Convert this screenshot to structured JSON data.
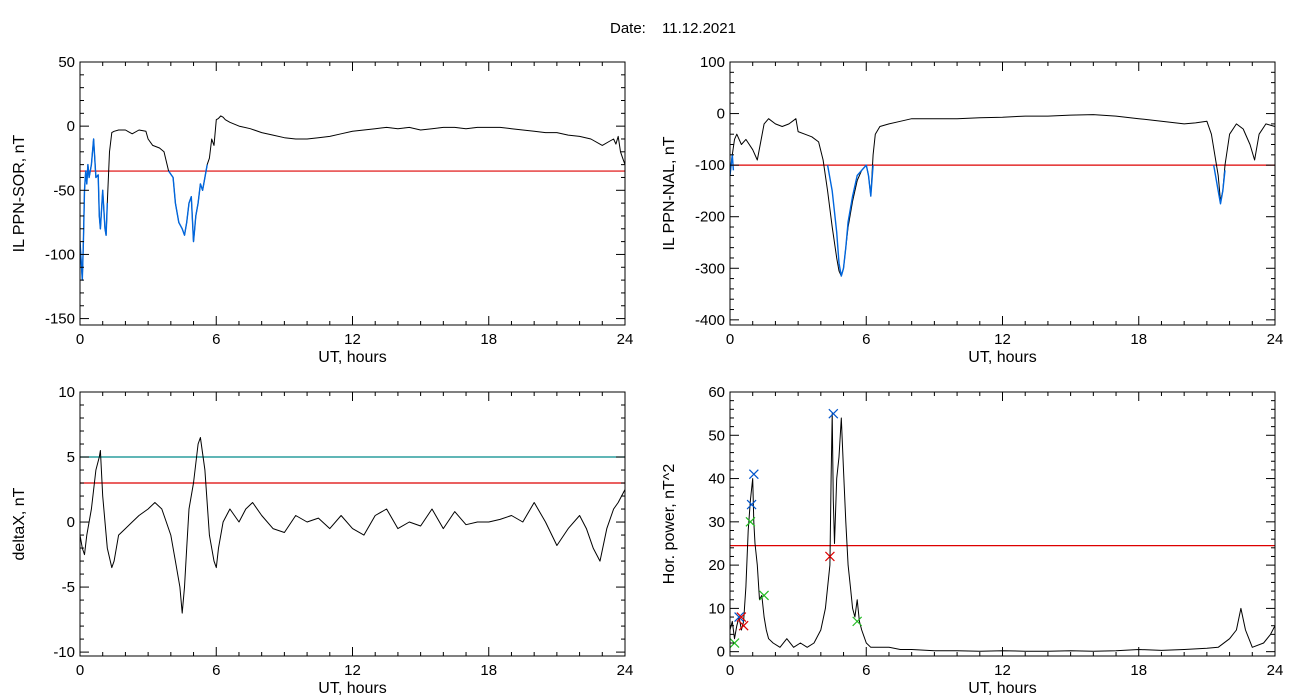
{
  "page": {
    "date_label": "Date:",
    "date_value": "11.12.2021"
  },
  "chart_data": [
    {
      "id": "sor",
      "type": "line",
      "xlabel": "UT, hours",
      "ylabel": "IL PPN-SOR, nT",
      "xlim": [
        0,
        24
      ],
      "ylim": [
        -155,
        50
      ],
      "xticks": [
        0,
        6,
        12,
        18,
        24
      ],
      "yticks": [
        -150,
        -100,
        -50,
        0,
        50
      ],
      "threshold": {
        "value": -35,
        "color": "#dd0000"
      },
      "series": [
        {
          "color": "#000000",
          "x": [
            0.0,
            0.1,
            0.15,
            0.2,
            0.25,
            0.3,
            0.35,
            0.4,
            0.5,
            0.55,
            0.6,
            0.7,
            0.8,
            0.85,
            0.9,
            1.0,
            1.1,
            1.15,
            1.2,
            1.3,
            1.4,
            1.5,
            1.7,
            2.0,
            2.3,
            2.6,
            2.9,
            3.0,
            3.2,
            3.5,
            3.7,
            3.9,
            4.1,
            4.2,
            4.35,
            4.5,
            4.6,
            4.7,
            4.8,
            4.9,
            5.0,
            5.05,
            5.1,
            5.2,
            5.3,
            5.4,
            5.5,
            5.6,
            5.7,
            5.8,
            5.9,
            6.0,
            6.1,
            6.2,
            6.3,
            6.4,
            6.6,
            7.0,
            7.5,
            8.0,
            8.5,
            9.0,
            9.5,
            10.0,
            10.5,
            11.0,
            11.5,
            12.0,
            12.5,
            13.0,
            13.5,
            14.0,
            14.5,
            15.0,
            15.5,
            16.0,
            16.5,
            17.0,
            17.5,
            18.0,
            18.5,
            19.0,
            19.5,
            20.0,
            20.5,
            21.0,
            21.5,
            22.0,
            22.5,
            23.0,
            23.3,
            23.5,
            23.6,
            23.7,
            23.8,
            23.9,
            24.0
          ],
          "y": [
            -90,
            -120,
            -90,
            -50,
            -35,
            -45,
            -30,
            -40,
            -30,
            -20,
            -10,
            -40,
            -38,
            -70,
            -80,
            -50,
            -80,
            -85,
            -60,
            -20,
            -5,
            -4,
            -3,
            -3,
            -6,
            -3,
            -4,
            -10,
            -15,
            -17,
            -20,
            -35,
            -40,
            -60,
            -75,
            -80,
            -85,
            -75,
            -60,
            -55,
            -90,
            -80,
            -70,
            -60,
            -45,
            -50,
            -40,
            -30,
            -25,
            -10,
            -15,
            5,
            6,
            8,
            7,
            5,
            3,
            0,
            -2,
            -5,
            -7,
            -9,
            -10,
            -10,
            -9,
            -8,
            -6,
            -4,
            -3,
            -2,
            -1,
            -2,
            -1,
            -3,
            -2,
            -1,
            -1,
            -2,
            -1,
            -1,
            -1,
            -2,
            -3,
            -4,
            -5,
            -5,
            -7,
            -8,
            -10,
            -15,
            -12,
            -10,
            -14,
            -8,
            -20,
            -25,
            -30
          ]
        },
        {
          "color": "#0066dd",
          "x": [
            0.0,
            0.1,
            0.15,
            0.2,
            0.25,
            0.3,
            0.35,
            0.4,
            0.5,
            0.55,
            0.6,
            0.7,
            0.8,
            0.85,
            0.9,
            1.0,
            1.1,
            1.15,
            1.2
          ],
          "y": [
            -90,
            -120,
            -90,
            -50,
            -35,
            -45,
            -30,
            -40,
            -30,
            -20,
            -10,
            -40,
            -38,
            -70,
            -80,
            -50,
            -80,
            -85,
            -60
          ]
        },
        {
          "color": "#0066dd",
          "x": [
            3.9,
            4.1,
            4.2,
            4.35,
            4.5,
            4.6,
            4.7,
            4.8,
            4.9,
            5.0,
            5.05,
            5.1,
            5.2,
            5.3,
            5.4,
            5.5,
            5.6
          ],
          "y": [
            -35,
            -40,
            -60,
            -75,
            -80,
            -85,
            -75,
            -60,
            -55,
            -90,
            -80,
            -70,
            -60,
            -45,
            -50,
            -40,
            -30
          ]
        }
      ]
    },
    {
      "id": "nal",
      "type": "line",
      "xlabel": "UT, hours",
      "ylabel": "IL PPN-NAL, nT",
      "xlim": [
        0,
        24
      ],
      "ylim": [
        -410,
        100
      ],
      "xticks": [
        0,
        6,
        12,
        18,
        24
      ],
      "yticks": [
        -400,
        -300,
        -200,
        -100,
        0,
        100
      ],
      "threshold": {
        "value": -100,
        "color": "#dd0000"
      },
      "series": [
        {
          "color": "#000000",
          "x": [
            0.0,
            0.1,
            0.2,
            0.3,
            0.5,
            0.7,
            1.0,
            1.2,
            1.5,
            1.7,
            2.0,
            2.3,
            2.6,
            2.9,
            3.0,
            3.3,
            3.6,
            3.9,
            4.1,
            4.3,
            4.5,
            4.7,
            4.8,
            4.9,
            5.0,
            5.1,
            5.2,
            5.4,
            5.6,
            5.8,
            6.0,
            6.1,
            6.2,
            6.3,
            6.4,
            6.6,
            7.0,
            7.5,
            8.0,
            9.0,
            10.0,
            11.0,
            12.0,
            13.0,
            14.0,
            15.0,
            16.0,
            17.0,
            18.0,
            19.0,
            20.0,
            20.5,
            21.0,
            21.2,
            21.5,
            21.6,
            21.7,
            21.8,
            22.0,
            22.3,
            22.6,
            22.9,
            23.1,
            23.3,
            23.6,
            24.0
          ],
          "y": [
            -120,
            -80,
            -50,
            -40,
            -60,
            -50,
            -70,
            -90,
            -20,
            -10,
            -20,
            -25,
            -20,
            -10,
            -35,
            -40,
            -45,
            -55,
            -90,
            -150,
            -220,
            -280,
            -305,
            -315,
            -300,
            -260,
            -220,
            -170,
            -130,
            -110,
            -100,
            -120,
            -160,
            -80,
            -40,
            -25,
            -20,
            -15,
            -10,
            -10,
            -10,
            -8,
            -7,
            -5,
            -5,
            -3,
            -2,
            -5,
            -10,
            -15,
            -20,
            -18,
            -15,
            -40,
            -120,
            -170,
            -150,
            -100,
            -40,
            -20,
            -30,
            -60,
            -90,
            -40,
            -20,
            -25
          ]
        },
        {
          "color": "#0066dd",
          "x": [
            0.0,
            0.1,
            0.15
          ],
          "y": [
            -120,
            -80,
            -110
          ]
        },
        {
          "color": "#0066dd",
          "x": [
            4.3,
            4.5,
            4.7,
            4.8,
            4.9,
            5.0,
            5.1,
            5.2,
            5.4,
            5.6,
            5.8,
            6.0,
            6.1,
            6.2,
            6.3
          ],
          "y": [
            -100,
            -150,
            -230,
            -290,
            -315,
            -300,
            -260,
            -210,
            -160,
            -120,
            -110,
            -100,
            -120,
            -160,
            -100
          ]
        },
        {
          "color": "#0066dd",
          "x": [
            21.3,
            21.5,
            21.6,
            21.7,
            21.8
          ],
          "y": [
            -100,
            -150,
            -175,
            -150,
            -110
          ]
        }
      ]
    },
    {
      "id": "deltax",
      "type": "line",
      "xlabel": "UT, hours",
      "ylabel": "deltaX, nT",
      "xlim": [
        0,
        24
      ],
      "ylim": [
        -10.3,
        10
      ],
      "xticks": [
        0,
        6,
        12,
        18,
        24
      ],
      "yticks": [
        -10,
        -5,
        0,
        5,
        10
      ],
      "thresholds": [
        {
          "value": 5,
          "color": "#008b8b"
        },
        {
          "value": 3,
          "color": "#dd0000"
        }
      ],
      "series": [
        {
          "color": "#000000",
          "x": [
            0.0,
            0.1,
            0.2,
            0.3,
            0.5,
            0.7,
            0.85,
            0.9,
            1.0,
            1.2,
            1.4,
            1.5,
            1.7,
            2.0,
            2.3,
            2.6,
            3.0,
            3.3,
            3.6,
            3.8,
            4.0,
            4.2,
            4.4,
            4.5,
            4.6,
            4.7,
            4.8,
            5.0,
            5.2,
            5.3,
            5.5,
            5.7,
            5.9,
            6.0,
            6.1,
            6.3,
            6.6,
            7.0,
            7.3,
            7.6,
            8.0,
            8.5,
            9.0,
            9.5,
            10.0,
            10.5,
            11.0,
            11.5,
            12.0,
            12.5,
            13.0,
            13.5,
            14.0,
            14.5,
            15.0,
            15.5,
            16.0,
            16.5,
            17.0,
            17.5,
            18.0,
            18.5,
            19.0,
            19.5,
            20.0,
            20.5,
            21.0,
            21.5,
            22.0,
            22.3,
            22.6,
            22.9,
            23.2,
            23.5,
            23.7,
            24.0
          ],
          "y": [
            -1,
            -2,
            -2.5,
            -1,
            1,
            4,
            5,
            5.5,
            2,
            -2,
            -3.5,
            -3,
            -1,
            -0.5,
            0,
            0.5,
            1,
            1.5,
            1,
            0,
            -1,
            -3,
            -5,
            -7,
            -5,
            -2,
            1,
            3,
            6,
            6.5,
            4,
            -1,
            -3,
            -3.5,
            -2,
            0,
            1,
            0,
            1,
            1.5,
            0.5,
            -0.5,
            -0.8,
            0.5,
            0,
            0.3,
            -0.5,
            0.5,
            -0.5,
            -1,
            0.5,
            1,
            -0.5,
            0,
            -0.3,
            1,
            -0.5,
            0.8,
            -0.2,
            0,
            0,
            0.2,
            0.5,
            0,
            1.5,
            0,
            -1.8,
            -0.5,
            0.5,
            -0.5,
            -2,
            -3,
            -0.5,
            1,
            1.5,
            2.5
          ]
        }
      ]
    },
    {
      "id": "hor",
      "type": "line",
      "xlabel": "UT, hours",
      "ylabel": "Hor. power, nT^2",
      "xlim": [
        0,
        24
      ],
      "ylim": [
        -1,
        60
      ],
      "xticks": [
        0,
        6,
        12,
        18,
        24
      ],
      "yticks": [
        0,
        10,
        20,
        30,
        40,
        50,
        60
      ],
      "threshold": {
        "value": 24.5,
        "color": "#dd0000"
      },
      "series": [
        {
          "color": "#000000",
          "x": [
            0.0,
            0.1,
            0.2,
            0.3,
            0.4,
            0.5,
            0.6,
            0.7,
            0.8,
            0.9,
            1.0,
            1.05,
            1.1,
            1.2,
            1.3,
            1.4,
            1.5,
            1.6,
            1.7,
            1.9,
            2.2,
            2.5,
            2.8,
            3.1,
            3.4,
            3.7,
            4.0,
            4.2,
            4.4,
            4.45,
            4.5,
            4.55,
            4.6,
            4.7,
            4.8,
            4.9,
            5.0,
            5.1,
            5.2,
            5.3,
            5.4,
            5.5,
            5.6,
            5.7,
            5.8,
            6.0,
            6.2,
            6.5,
            7.0,
            7.5,
            8.0,
            9.0,
            10.0,
            11.0,
            12.0,
            13.0,
            14.0,
            15.0,
            16.0,
            17.0,
            18.0,
            19.0,
            20.0,
            21.0,
            21.5,
            22.0,
            22.3,
            22.5,
            22.7,
            23.0,
            23.5,
            23.8,
            24.0
          ],
          "y": [
            5,
            7,
            3,
            6,
            8,
            5,
            7,
            15,
            28,
            35,
            40,
            30,
            25,
            20,
            12,
            13,
            8,
            5,
            3,
            2,
            1,
            3,
            1,
            2,
            1,
            2,
            5,
            10,
            20,
            40,
            55,
            35,
            25,
            40,
            45,
            54,
            42,
            30,
            20,
            15,
            10,
            8,
            12,
            7,
            5,
            2,
            1,
            1,
            1,
            0.5,
            0.5,
            0.2,
            0.2,
            0.1,
            0.2,
            0.1,
            0.1,
            0.2,
            0.1,
            0.2,
            0.5,
            0.3,
            0.5,
            0.8,
            1,
            3,
            5,
            10,
            5,
            1,
            2,
            4,
            6
          ]
        }
      ],
      "markers": [
        {
          "x": 0.4,
          "y": 8,
          "color": "#0055cc"
        },
        {
          "x": 0.6,
          "y": 6,
          "color": "#dd0000"
        },
        {
          "x": 0.5,
          "y": 8,
          "color": "#dd0000"
        },
        {
          "x": 0.2,
          "y": 2,
          "color": "#22bb22"
        },
        {
          "x": 0.95,
          "y": 34,
          "color": "#0055cc"
        },
        {
          "x": 1.05,
          "y": 41,
          "color": "#0055cc"
        },
        {
          "x": 0.9,
          "y": 30,
          "color": "#22bb22"
        },
        {
          "x": 1.5,
          "y": 13,
          "color": "#22bb22"
        },
        {
          "x": 4.4,
          "y": 22,
          "color": "#dd0000"
        },
        {
          "x": 4.55,
          "y": 55,
          "color": "#0055cc"
        },
        {
          "x": 5.6,
          "y": 7,
          "color": "#22bb22"
        }
      ]
    }
  ]
}
